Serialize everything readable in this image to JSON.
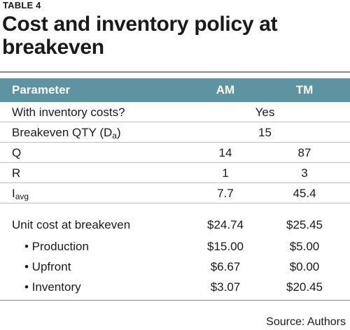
{
  "table_label": "TABLE 4",
  "title": "Cost and inventory policy at breakeven",
  "columns": [
    "Parameter",
    "AM",
    "TM"
  ],
  "rows": [
    {
      "param": "With inventory costs?",
      "shared": "Yes"
    },
    {
      "param": "Breakeven QTY (D",
      "param_sub": "a",
      "param_after": ")",
      "shared": "15"
    },
    {
      "param": "Q",
      "am": "14",
      "tm": "87"
    },
    {
      "param": "R",
      "am": "1",
      "tm": "3"
    },
    {
      "param": "I",
      "param_sub": "avg",
      "am": "7.7",
      "tm": "45.4"
    },
    {
      "param": "Unit cost at breakeven",
      "am": "$24.74",
      "tm": "$25.45"
    },
    {
      "param": "• Production",
      "am": "$15.00",
      "tm": "$5.00"
    },
    {
      "param": "• Upfront",
      "am": "$6.67",
      "tm": "$0.00"
    },
    {
      "param": "• Inventory",
      "am": "$3.07",
      "tm": "$20.45"
    }
  ],
  "source": "Source: Authors",
  "colors": {
    "header_bg": "#5e93a1",
    "header_text": "#ffffff",
    "rule": "#bfbfbf"
  }
}
